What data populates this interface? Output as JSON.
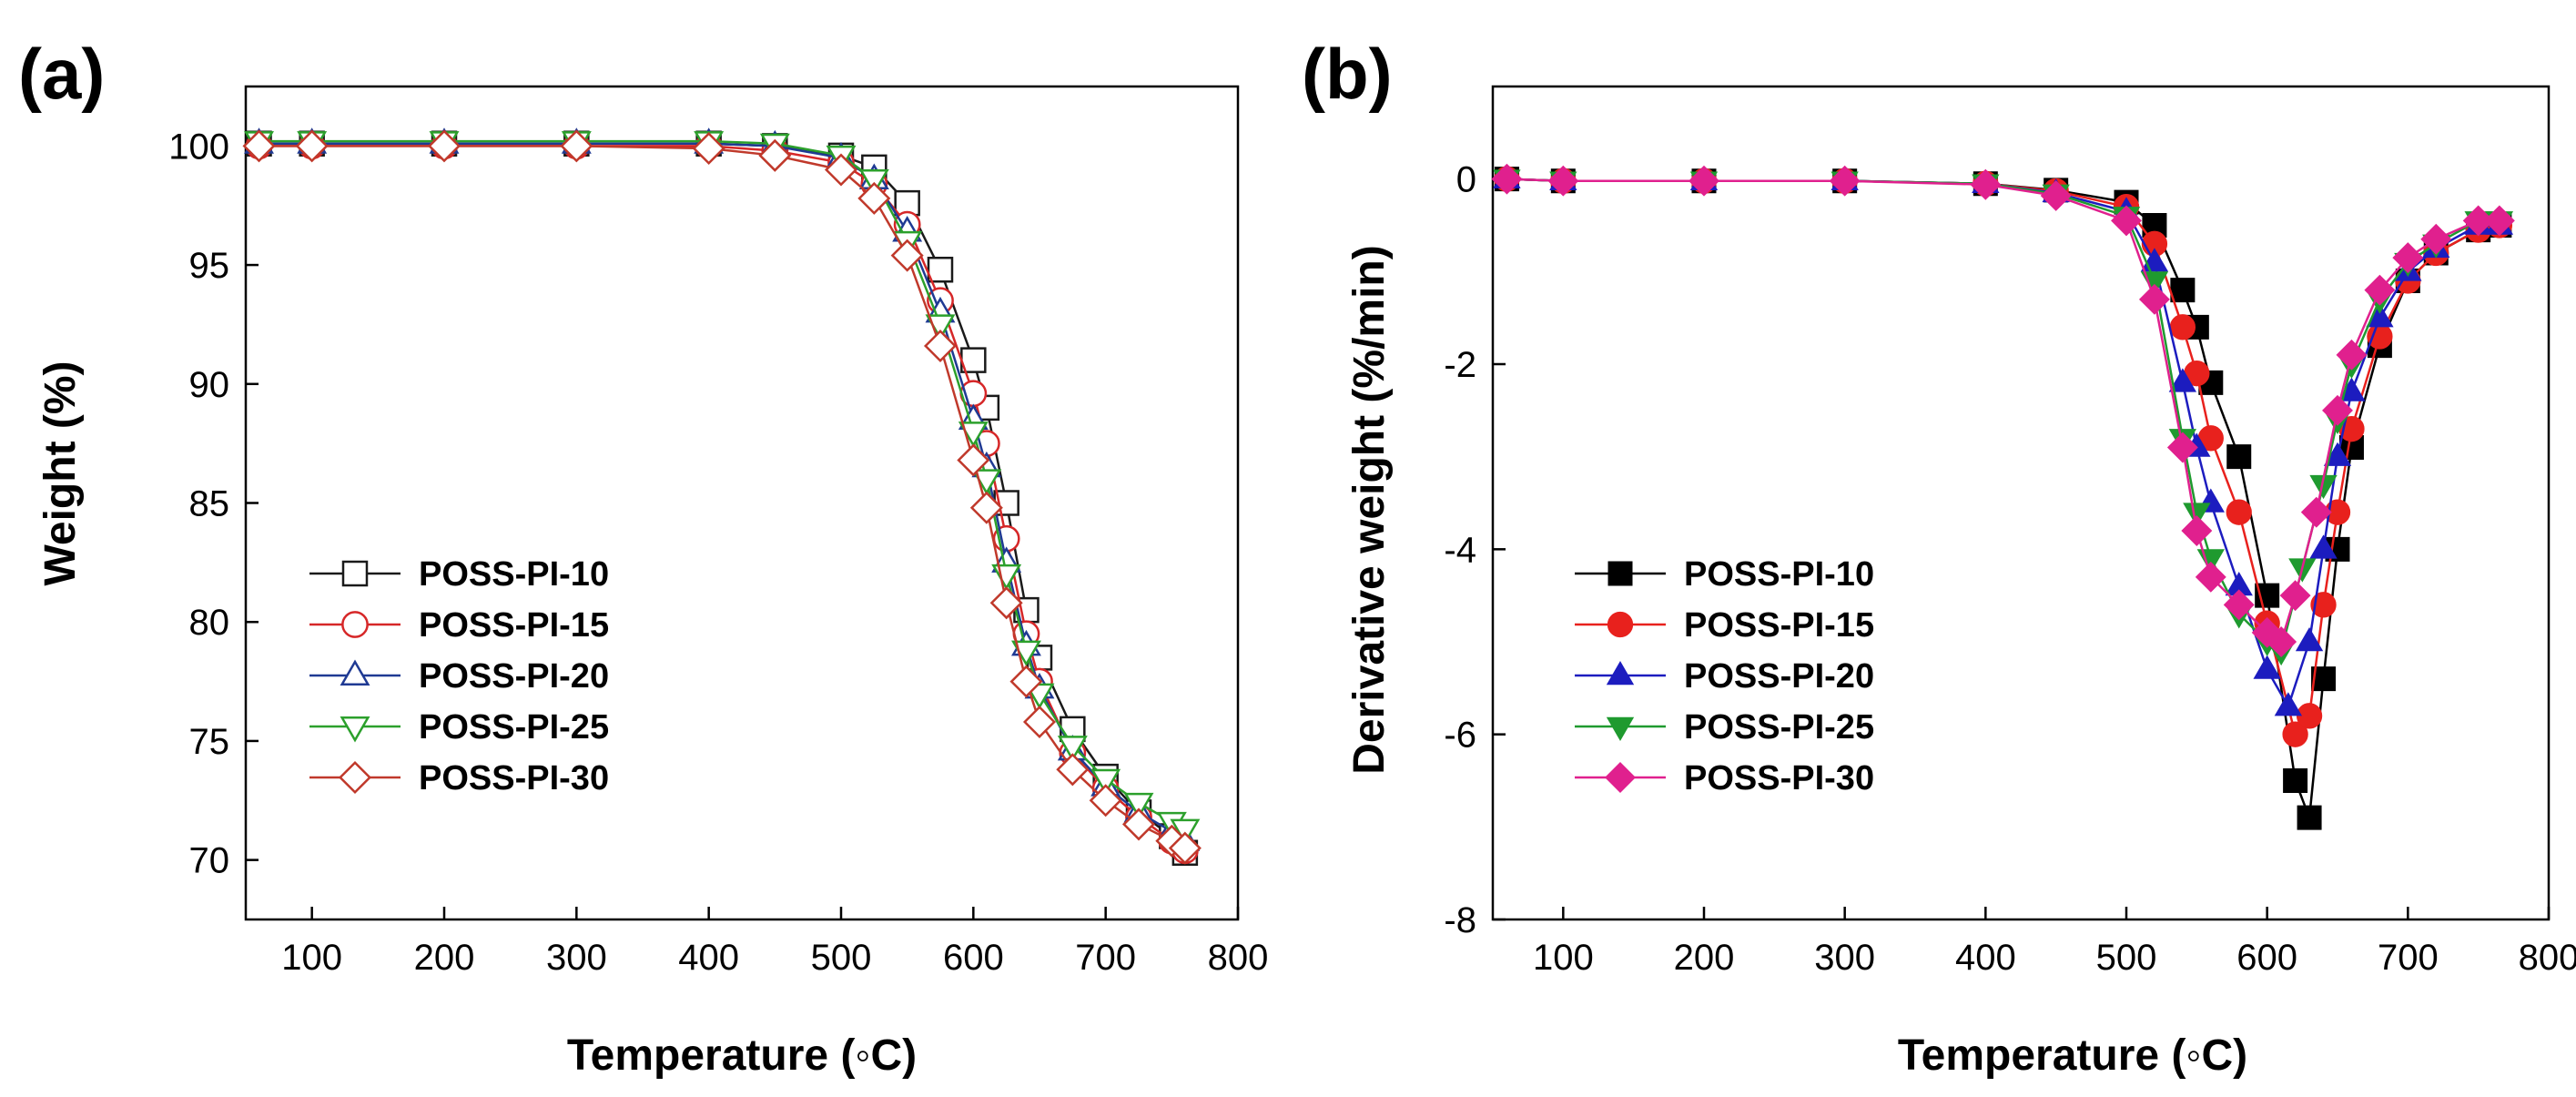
{
  "chart_data": [
    {
      "panel_label": "(a)",
      "type": "line",
      "xlabel": "Temperature (◦C)",
      "ylabel": "Weight (%)",
      "xlim": [
        50,
        800
      ],
      "ylim": [
        67.5,
        102.5
      ],
      "xticks": [
        100,
        200,
        300,
        400,
        500,
        600,
        700,
        800
      ],
      "yticks": [
        70,
        75,
        80,
        85,
        90,
        95,
        100
      ],
      "legend_position": "lower-left",
      "series": [
        {
          "name": "POSS-PI-10",
          "color": "#1a1a1a",
          "marker": "square",
          "x": [
            60,
            100,
            200,
            300,
            400,
            450,
            500,
            525,
            550,
            575,
            600,
            610,
            625,
            640,
            650,
            675,
            700,
            725,
            750,
            760
          ],
          "y": [
            100.1,
            100.1,
            100.1,
            100.1,
            100.1,
            100.0,
            99.6,
            99.1,
            97.6,
            94.8,
            91.0,
            89.0,
            85.0,
            80.5,
            78.5,
            75.5,
            73.5,
            72.0,
            71.0,
            70.3
          ]
        },
        {
          "name": "POSS-PI-15",
          "color": "#d62728",
          "marker": "circle",
          "x": [
            60,
            100,
            200,
            300,
            400,
            450,
            500,
            525,
            550,
            575,
            600,
            610,
            625,
            640,
            650,
            675,
            700,
            725,
            750,
            760
          ],
          "y": [
            100.0,
            100.0,
            100.0,
            100.0,
            100.0,
            99.8,
            99.3,
            98.4,
            96.7,
            93.5,
            89.6,
            87.5,
            83.5,
            79.5,
            77.5,
            74.5,
            73.0,
            71.8,
            70.8,
            70.4
          ]
        },
        {
          "name": "POSS-PI-20",
          "color": "#1f3a93",
          "marker": "triangle-up",
          "x": [
            60,
            100,
            200,
            300,
            400,
            450,
            500,
            525,
            550,
            575,
            600,
            610,
            625,
            640,
            650,
            675,
            700,
            725,
            750,
            760
          ],
          "y": [
            100.1,
            100.1,
            100.1,
            100.1,
            100.1,
            100.0,
            99.5,
            98.6,
            96.4,
            93.0,
            88.5,
            86.5,
            82.5,
            79.0,
            77.2,
            74.6,
            73.1,
            72.0,
            71.2,
            70.8
          ]
        },
        {
          "name": "POSS-PI-25",
          "color": "#2ca02c",
          "marker": "triangle-down",
          "x": [
            60,
            100,
            200,
            300,
            400,
            450,
            500,
            525,
            550,
            575,
            600,
            610,
            625,
            640,
            650,
            675,
            700,
            725,
            750,
            760
          ],
          "y": [
            100.2,
            100.2,
            100.2,
            100.2,
            100.2,
            100.1,
            99.6,
            98.6,
            96.0,
            92.5,
            88.0,
            86.0,
            82.0,
            78.8,
            77.0,
            74.8,
            73.4,
            72.4,
            71.6,
            71.3
          ]
        },
        {
          "name": "POSS-PI-30",
          "color": "#c0392b",
          "marker": "diamond",
          "x": [
            60,
            100,
            200,
            300,
            400,
            450,
            500,
            525,
            550,
            575,
            600,
            610,
            625,
            640,
            650,
            675,
            700,
            725,
            750,
            760
          ],
          "y": [
            100.0,
            100.0,
            100.0,
            100.0,
            99.9,
            99.6,
            99.0,
            97.8,
            95.4,
            91.6,
            86.8,
            84.8,
            80.8,
            77.5,
            75.8,
            73.8,
            72.5,
            71.5,
            70.8,
            70.5
          ]
        }
      ]
    },
    {
      "panel_label": "(b)",
      "type": "line",
      "xlabel": "Temperature (◦C)",
      "ylabel": "Derivative weight (%/min)",
      "xlim": [
        50,
        800
      ],
      "ylim": [
        -8,
        1
      ],
      "xticks": [
        100,
        200,
        300,
        400,
        500,
        600,
        700,
        800
      ],
      "yticks": [
        0,
        -2,
        -4,
        -6,
        -8
      ],
      "legend_position": "lower-left",
      "series": [
        {
          "name": "POSS-PI-10",
          "color": "#000000",
          "marker": "square",
          "x": [
            60,
            100,
            200,
            300,
            400,
            450,
            500,
            520,
            540,
            550,
            560,
            580,
            600,
            620,
            630,
            640,
            650,
            660,
            680,
            700,
            720,
            750,
            765
          ],
          "y": [
            0,
            -0.02,
            -0.02,
            -0.02,
            -0.05,
            -0.12,
            -0.25,
            -0.5,
            -1.2,
            -1.6,
            -2.2,
            -3.0,
            -4.5,
            -6.5,
            -6.9,
            -5.4,
            -4.0,
            -2.9,
            -1.8,
            -1.1,
            -0.8,
            -0.55,
            -0.5
          ]
        },
        {
          "name": "POSS-PI-15",
          "color": "#e8211d",
          "marker": "circle",
          "x": [
            60,
            100,
            200,
            300,
            400,
            450,
            500,
            520,
            540,
            550,
            560,
            580,
            600,
            620,
            630,
            640,
            650,
            660,
            680,
            700,
            720,
            750,
            765
          ],
          "y": [
            0,
            -0.02,
            -0.02,
            -0.02,
            -0.05,
            -0.13,
            -0.3,
            -0.7,
            -1.6,
            -2.1,
            -2.8,
            -3.6,
            -4.8,
            -6.0,
            -5.8,
            -4.6,
            -3.6,
            -2.7,
            -1.7,
            -1.1,
            -0.8,
            -0.55,
            -0.5
          ]
        },
        {
          "name": "POSS-PI-20",
          "color": "#1c1cbf",
          "marker": "triangle-up",
          "x": [
            60,
            100,
            200,
            300,
            400,
            450,
            500,
            520,
            540,
            550,
            560,
            580,
            600,
            615,
            630,
            640,
            650,
            660,
            680,
            700,
            720,
            750,
            765
          ],
          "y": [
            0,
            -0.02,
            -0.02,
            -0.02,
            -0.05,
            -0.15,
            -0.35,
            -0.9,
            -2.2,
            -2.9,
            -3.5,
            -4.4,
            -5.3,
            -5.7,
            -5.0,
            -4.0,
            -3.0,
            -2.3,
            -1.5,
            -1.0,
            -0.75,
            -0.5,
            -0.5
          ]
        },
        {
          "name": "POSS-PI-25",
          "color": "#1f9a2f",
          "marker": "triangle-down",
          "x": [
            60,
            100,
            200,
            300,
            400,
            450,
            500,
            520,
            540,
            550,
            560,
            580,
            600,
            610,
            625,
            640,
            650,
            660,
            680,
            700,
            720,
            750,
            765
          ],
          "y": [
            0,
            -0.02,
            -0.02,
            -0.02,
            -0.05,
            -0.16,
            -0.4,
            -1.1,
            -2.8,
            -3.6,
            -4.1,
            -4.7,
            -5.0,
            -5.1,
            -4.2,
            -3.3,
            -2.6,
            -2.0,
            -1.3,
            -0.9,
            -0.7,
            -0.45,
            -0.45
          ]
        },
        {
          "name": "POSS-PI-30",
          "color": "#e0208e",
          "marker": "diamond",
          "x": [
            60,
            100,
            200,
            300,
            400,
            450,
            500,
            520,
            540,
            550,
            560,
            580,
            600,
            610,
            620,
            635,
            650,
            660,
            680,
            700,
            720,
            750,
            765
          ],
          "y": [
            0,
            -0.02,
            -0.02,
            -0.02,
            -0.06,
            -0.18,
            -0.45,
            -1.3,
            -2.9,
            -3.8,
            -4.3,
            -4.6,
            -4.9,
            -5.0,
            -4.5,
            -3.6,
            -2.5,
            -1.9,
            -1.2,
            -0.85,
            -0.65,
            -0.45,
            -0.45
          ]
        }
      ]
    }
  ]
}
